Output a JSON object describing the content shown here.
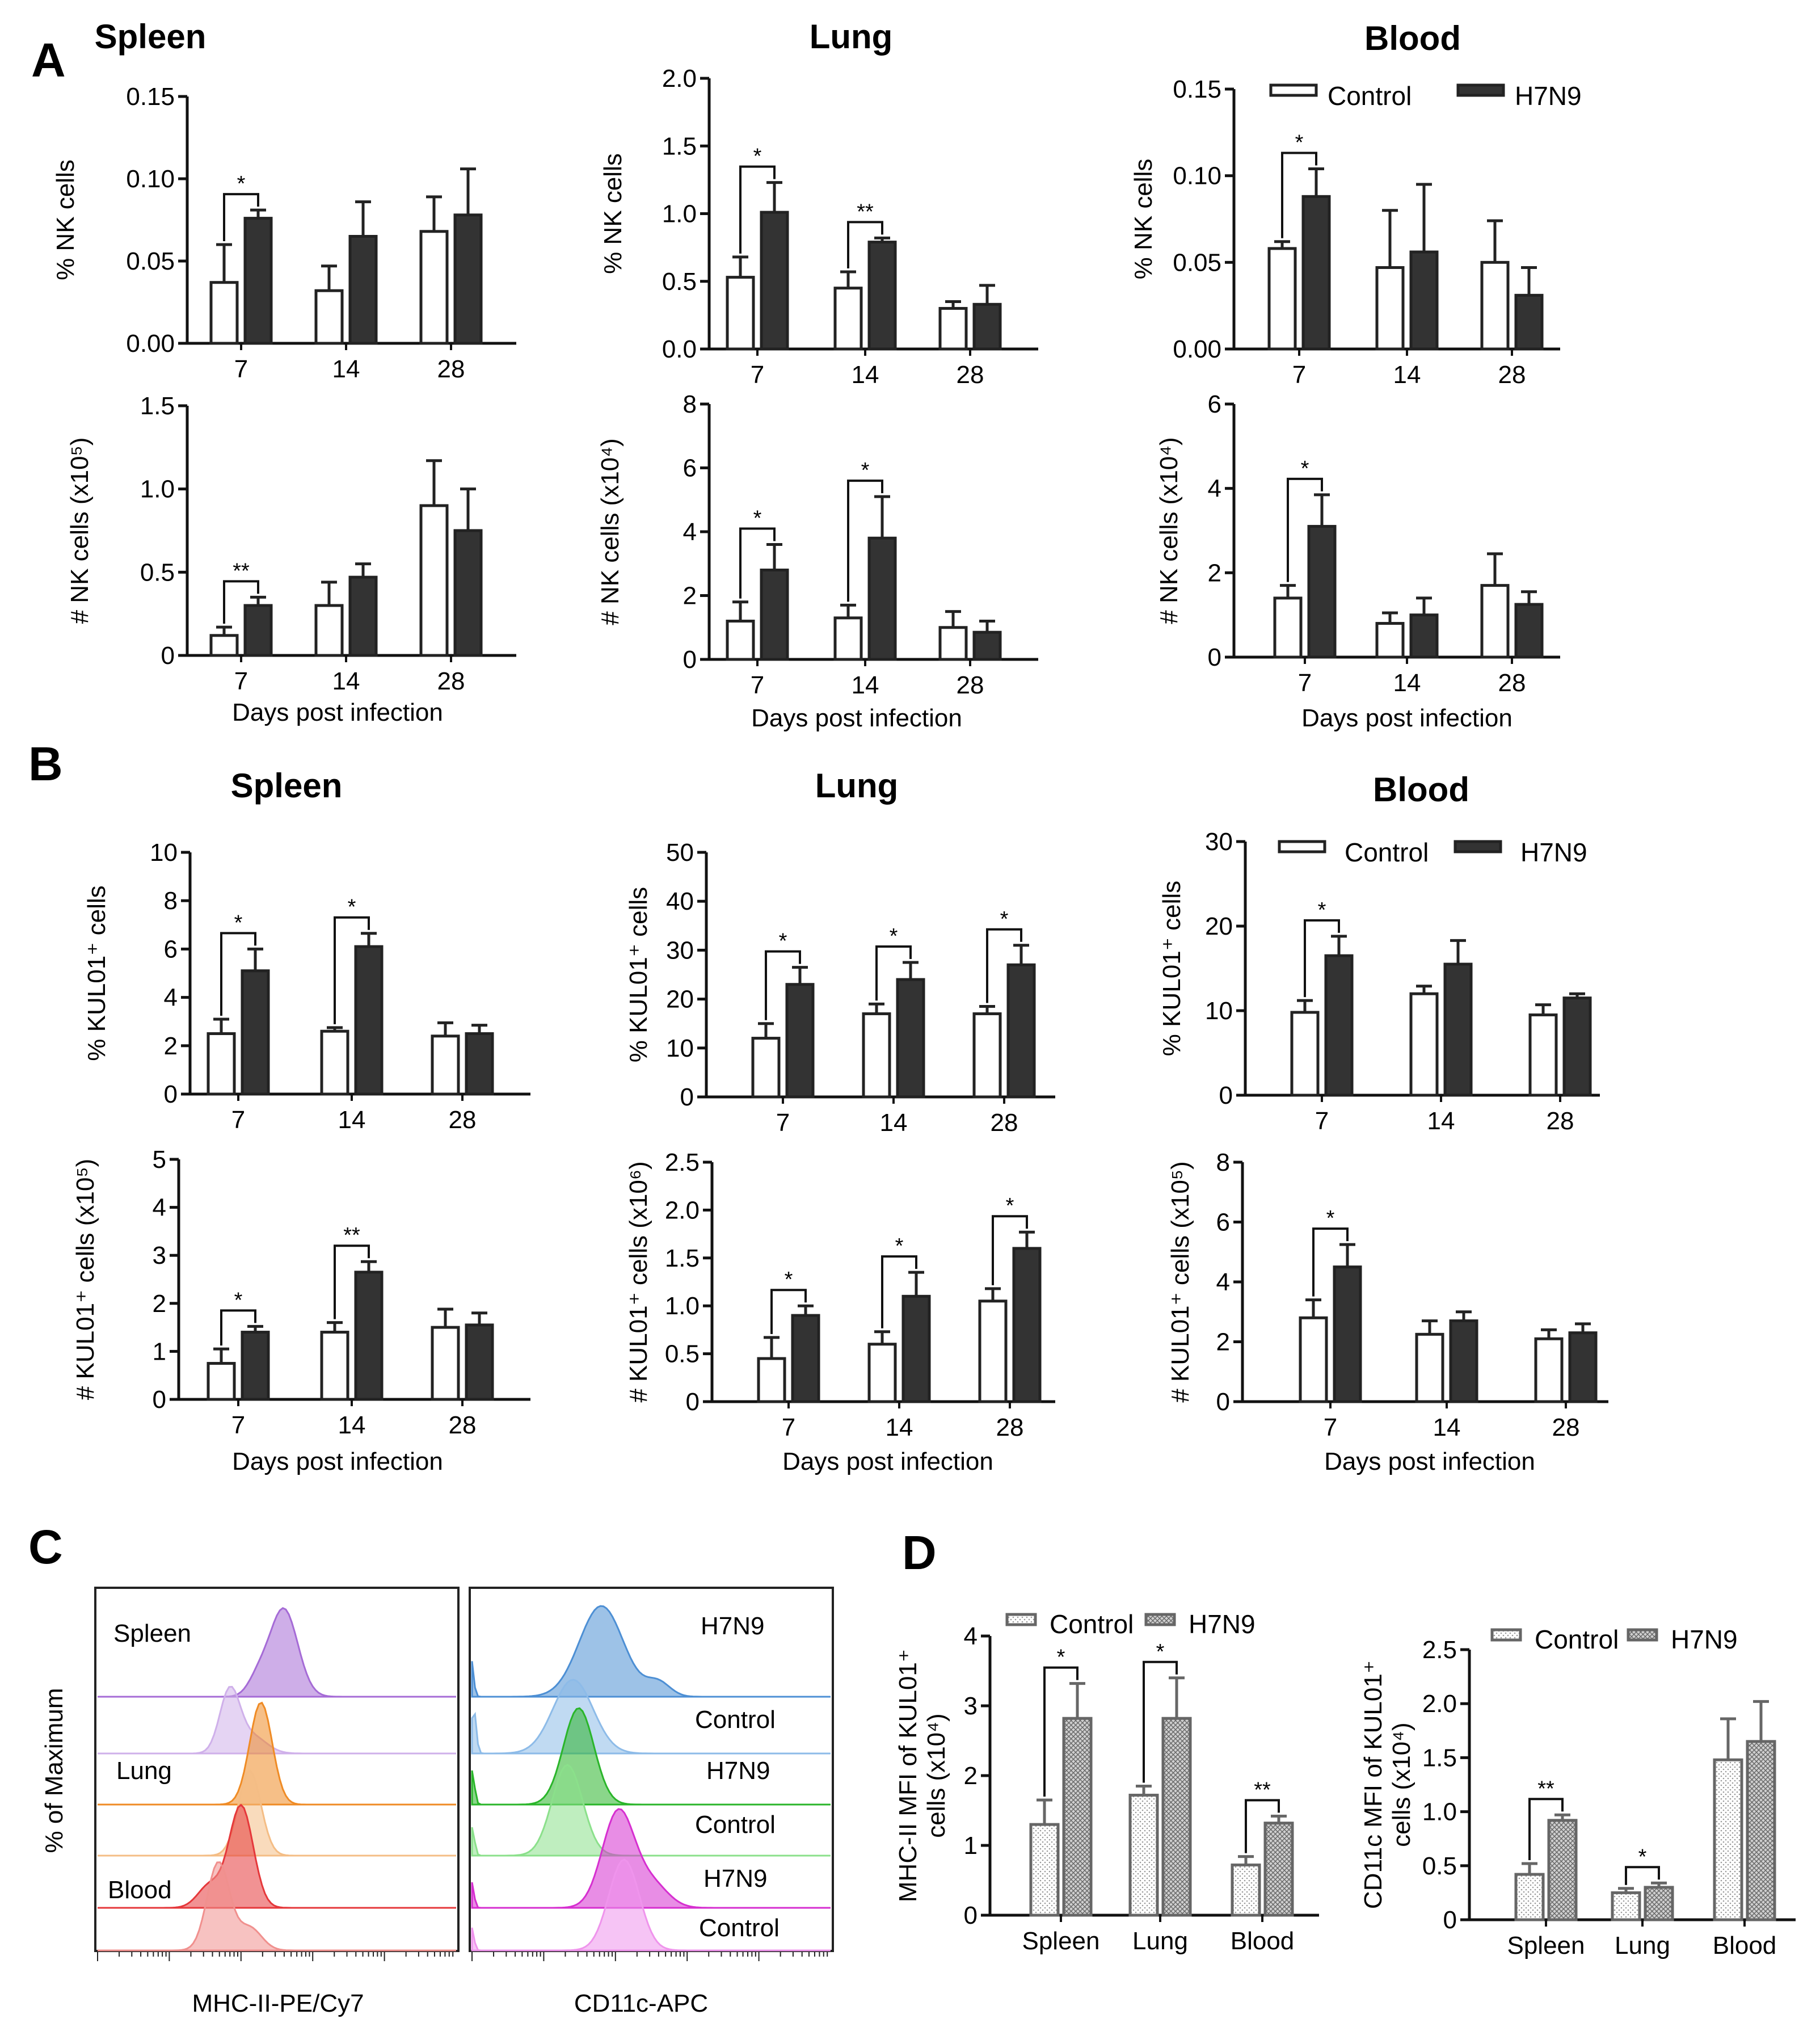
{
  "panel_labels": {
    "A": "A",
    "B": "B",
    "C": "C",
    "D": "D"
  },
  "colors": {
    "control_fill": "#ffffff",
    "h7n9_fill": "#333333",
    "axis": "#111111",
    "spleen_h7n9": "#a56bd6",
    "spleen_control": "#cfb0ea",
    "lung_h7n9": "#ef8b25",
    "lung_control": "#f4bd85",
    "blood_h7n9": "#e5383b",
    "blood_control": "#f0908e",
    "cd11c_spleen_h7n9": "#4d8fd4",
    "cd11c_spleen_control": "#8dbbe8",
    "cd11c_lung_h7n9": "#2ab52a",
    "cd11c_lung_control": "#8be08b",
    "cd11c_blood_h7n9": "#d62fd0",
    "cd11c_blood_control": "#ef94ec",
    "d_bar": "#c8c8c8"
  },
  "legend": {
    "control": "Control",
    "h7n9": "H7N9"
  },
  "xlabel": "Days post infection",
  "flow": {
    "y_label": "% of Maximum",
    "left_xlabel": "MHC-II-PE/Cy7",
    "right_xlabel": "CD11c-APC",
    "left_tissues": [
      "Spleen",
      "Lung",
      "Blood"
    ],
    "right_labels": [
      "H7N9",
      "Control",
      "H7N9",
      "Control",
      "H7N9",
      "Control"
    ]
  },
  "chart_data": [
    {
      "id": "A-spleen-pct",
      "type": "bar",
      "title": "Spleen",
      "ylabel": "% NK cells",
      "categories": [
        "7",
        "14",
        "28"
      ],
      "ylim": [
        0,
        0.15
      ],
      "yticks": [
        "0.00",
        "0.05",
        "0.10",
        "0.15"
      ],
      "series": [
        {
          "name": "Control",
          "values": [
            0.037,
            0.032,
            0.068
          ],
          "errors": [
            0.023,
            0.015,
            0.021
          ]
        },
        {
          "name": "H7N9",
          "values": [
            0.076,
            0.065,
            0.078
          ],
          "errors": [
            0.005,
            0.021,
            0.028
          ]
        }
      ],
      "sig": [
        {
          "cat": 0,
          "label": "*"
        }
      ]
    },
    {
      "id": "A-lung-pct",
      "type": "bar",
      "title": "Lung",
      "ylabel": "% NK cells",
      "categories": [
        "7",
        "14",
        "28"
      ],
      "ylim": [
        0,
        2.0
      ],
      "yticks": [
        "0.0",
        "0.5",
        "1.0",
        "1.5",
        "2.0"
      ],
      "series": [
        {
          "name": "Control",
          "values": [
            0.53,
            0.45,
            0.3
          ],
          "errors": [
            0.15,
            0.12,
            0.05
          ]
        },
        {
          "name": "H7N9",
          "values": [
            1.01,
            0.79,
            0.33
          ],
          "errors": [
            0.22,
            0.03,
            0.14
          ]
        }
      ],
      "sig": [
        {
          "cat": 0,
          "label": "*"
        },
        {
          "cat": 1,
          "label": "**"
        }
      ]
    },
    {
      "id": "A-blood-pct",
      "type": "bar",
      "title": "Blood",
      "ylabel": "% NK cells",
      "categories": [
        "7",
        "14",
        "28"
      ],
      "ylim": [
        0,
        0.15
      ],
      "yticks": [
        "0.00",
        "0.05",
        "0.10",
        "0.15"
      ],
      "series": [
        {
          "name": "Control",
          "values": [
            0.058,
            0.047,
            0.05
          ],
          "errors": [
            0.004,
            0.033,
            0.024
          ]
        },
        {
          "name": "H7N9",
          "values": [
            0.088,
            0.056,
            0.031
          ],
          "errors": [
            0.016,
            0.039,
            0.016
          ]
        }
      ],
      "sig": [
        {
          "cat": 0,
          "label": "*"
        }
      ]
    },
    {
      "id": "A-spleen-num",
      "type": "bar",
      "ylabel": "# NK cells (x10⁵)",
      "xlabel": "Days post infection",
      "categories": [
        "7",
        "14",
        "28"
      ],
      "ylim": [
        0,
        1.5
      ],
      "yticks": [
        "0",
        "0.5",
        "1.0",
        "1.5"
      ],
      "series": [
        {
          "name": "Control",
          "values": [
            0.12,
            0.3,
            0.9
          ],
          "errors": [
            0.05,
            0.14,
            0.27
          ]
        },
        {
          "name": "H7N9",
          "values": [
            0.3,
            0.47,
            0.75
          ],
          "errors": [
            0.05,
            0.08,
            0.25
          ]
        }
      ],
      "sig": [
        {
          "cat": 0,
          "label": "**"
        }
      ]
    },
    {
      "id": "A-lung-num",
      "type": "bar",
      "ylabel": "# NK cells (x10⁴)",
      "xlabel": "Days post infection",
      "categories": [
        "7",
        "14",
        "28"
      ],
      "ylim": [
        0,
        8
      ],
      "yticks": [
        "0",
        "2",
        "4",
        "6",
        "8"
      ],
      "series": [
        {
          "name": "Control",
          "values": [
            1.2,
            1.3,
            1.0
          ],
          "errors": [
            0.6,
            0.4,
            0.5
          ]
        },
        {
          "name": "H7N9",
          "values": [
            2.8,
            3.8,
            0.85
          ],
          "errors": [
            0.8,
            1.3,
            0.35
          ]
        }
      ],
      "sig": [
        {
          "cat": 0,
          "label": "*"
        },
        {
          "cat": 1,
          "label": "*"
        }
      ]
    },
    {
      "id": "A-blood-num",
      "type": "bar",
      "ylabel": "# NK cells (x10⁴)",
      "xlabel": "Days post infection",
      "categories": [
        "7",
        "14",
        "28"
      ],
      "ylim": [
        0,
        6
      ],
      "yticks": [
        "0",
        "2",
        "4",
        "6"
      ],
      "series": [
        {
          "name": "Control",
          "values": [
            1.4,
            0.8,
            1.7
          ],
          "errors": [
            0.3,
            0.25,
            0.75
          ]
        },
        {
          "name": "H7N9",
          "values": [
            3.1,
            1.0,
            1.25
          ],
          "errors": [
            0.75,
            0.4,
            0.3
          ]
        }
      ],
      "sig": [
        {
          "cat": 0,
          "label": "*"
        }
      ]
    },
    {
      "id": "B-spleen-pct",
      "type": "bar",
      "title": "Spleen",
      "ylabel": "% KUL01⁺ cells",
      "categories": [
        "7",
        "14",
        "28"
      ],
      "ylim": [
        0,
        10
      ],
      "yticks": [
        "0",
        "2",
        "4",
        "6",
        "8",
        "10"
      ],
      "series": [
        {
          "name": "Control",
          "values": [
            2.5,
            2.6,
            2.4
          ],
          "errors": [
            0.6,
            0.15,
            0.55
          ]
        },
        {
          "name": "H7N9",
          "values": [
            5.1,
            6.1,
            2.5
          ],
          "errors": [
            0.9,
            0.55,
            0.35
          ]
        }
      ],
      "sig": [
        {
          "cat": 0,
          "label": "*"
        },
        {
          "cat": 1,
          "label": "*"
        }
      ]
    },
    {
      "id": "B-lung-pct",
      "type": "bar",
      "title": "Lung",
      "ylabel": "% KUL01⁺ cells",
      "categories": [
        "7",
        "14",
        "28"
      ],
      "ylim": [
        0,
        50
      ],
      "yticks": [
        "0",
        "10",
        "20",
        "30",
        "40",
        "50"
      ],
      "series": [
        {
          "name": "Control",
          "values": [
            12,
            17,
            17
          ],
          "errors": [
            3,
            2,
            1.5
          ]
        },
        {
          "name": "H7N9",
          "values": [
            23,
            24,
            27
          ],
          "errors": [
            3.5,
            3.5,
            4
          ]
        }
      ],
      "sig": [
        {
          "cat": 0,
          "label": "*"
        },
        {
          "cat": 1,
          "label": "*"
        },
        {
          "cat": 2,
          "label": "*"
        }
      ]
    },
    {
      "id": "B-blood-pct",
      "type": "bar",
      "title": "Blood",
      "ylabel": "% KUL01⁺ cells",
      "categories": [
        "7",
        "14",
        "28"
      ],
      "ylim": [
        0,
        30
      ],
      "yticks": [
        "0",
        "10",
        "20",
        "30"
      ],
      "series": [
        {
          "name": "Control",
          "values": [
            9.8,
            12,
            9.5
          ],
          "errors": [
            1.4,
            0.9,
            1.2
          ]
        },
        {
          "name": "H7N9",
          "values": [
            16.5,
            15.5,
            11.5
          ],
          "errors": [
            2.3,
            2.8,
            0.5
          ]
        }
      ],
      "sig": [
        {
          "cat": 0,
          "label": "*"
        }
      ]
    },
    {
      "id": "B-spleen-num",
      "type": "bar",
      "ylabel": "# KUL01⁺ cells (x10⁵)",
      "xlabel": "Days post infection",
      "categories": [
        "7",
        "14",
        "28"
      ],
      "ylim": [
        0,
        5
      ],
      "yticks": [
        "0",
        "1",
        "2",
        "3",
        "4",
        "5"
      ],
      "series": [
        {
          "name": "Control",
          "values": [
            0.75,
            1.4,
            1.5
          ],
          "errors": [
            0.3,
            0.2,
            0.38
          ]
        },
        {
          "name": "H7N9",
          "values": [
            1.4,
            2.65,
            1.55
          ],
          "errors": [
            0.12,
            0.22,
            0.25
          ]
        }
      ],
      "sig": [
        {
          "cat": 0,
          "label": "*"
        },
        {
          "cat": 1,
          "label": "**"
        }
      ]
    },
    {
      "id": "B-lung-num",
      "type": "bar",
      "ylabel": "# KUL01⁺ cells (x10⁶)",
      "xlabel": "Days post infection",
      "categories": [
        "7",
        "14",
        "28"
      ],
      "ylim": [
        0,
        2.5
      ],
      "yticks": [
        "0",
        "0.5",
        "1.0",
        "1.5",
        "2.0",
        "2.5"
      ],
      "series": [
        {
          "name": "Control",
          "values": [
            0.45,
            0.6,
            1.05
          ],
          "errors": [
            0.22,
            0.13,
            0.13
          ]
        },
        {
          "name": "H7N9",
          "values": [
            0.9,
            1.1,
            1.6
          ],
          "errors": [
            0.1,
            0.25,
            0.17
          ]
        }
      ],
      "sig": [
        {
          "cat": 0,
          "label": "*"
        },
        {
          "cat": 1,
          "label": "*"
        },
        {
          "cat": 2,
          "label": "*"
        }
      ]
    },
    {
      "id": "B-blood-num",
      "type": "bar",
      "ylabel": "# KUL01⁺ cells  (x10⁵)",
      "xlabel": "Days post infection",
      "categories": [
        "7",
        "14",
        "28"
      ],
      "ylim": [
        0,
        8
      ],
      "yticks": [
        "0",
        "2",
        "4",
        "6",
        "8"
      ],
      "series": [
        {
          "name": "Control",
          "values": [
            2.8,
            2.25,
            2.1
          ],
          "errors": [
            0.6,
            0.45,
            0.3
          ]
        },
        {
          "name": "H7N9",
          "values": [
            4.5,
            2.7,
            2.3
          ],
          "errors": [
            0.75,
            0.3,
            0.3
          ]
        }
      ],
      "sig": [
        {
          "cat": 0,
          "label": "*"
        }
      ]
    },
    {
      "id": "D-mhc",
      "type": "bar",
      "ylabel": "MHC-II MFI of KUL01⁺ cells (x10⁴)",
      "categories": [
        "Spleen",
        "Lung",
        "Blood"
      ],
      "ylim": [
        0,
        4
      ],
      "yticks": [
        "0",
        "1",
        "2",
        "3",
        "4"
      ],
      "series": [
        {
          "name": "Control",
          "values": [
            1.3,
            1.72,
            0.72
          ],
          "errors": [
            0.35,
            0.13,
            0.12
          ]
        },
        {
          "name": "H7N9",
          "values": [
            2.82,
            2.82,
            1.32
          ],
          "errors": [
            0.5,
            0.58,
            0.1
          ]
        }
      ],
      "sig": [
        {
          "cat": 0,
          "label": "*"
        },
        {
          "cat": 1,
          "label": "*"
        },
        {
          "cat": 2,
          "label": "**"
        }
      ]
    },
    {
      "id": "D-cd11c",
      "type": "bar",
      "ylabel": "CD11c MFI of KUL01⁺ cells (x10⁴)",
      "categories": [
        "Spleen",
        "Lung",
        "Blood"
      ],
      "ylim": [
        0,
        2.5
      ],
      "yticks": [
        "0",
        "0.5",
        "1.0",
        "1.5",
        "2.0",
        "2.5"
      ],
      "series": [
        {
          "name": "Control",
          "values": [
            0.42,
            0.25,
            1.48
          ],
          "errors": [
            0.1,
            0.04,
            0.38
          ]
        },
        {
          "name": "H7N9",
          "values": [
            0.92,
            0.3,
            1.65
          ],
          "errors": [
            0.05,
            0.04,
            0.37
          ]
        }
      ],
      "sig": [
        {
          "cat": 0,
          "label": "**"
        },
        {
          "cat": 1,
          "label": "*"
        }
      ]
    }
  ]
}
